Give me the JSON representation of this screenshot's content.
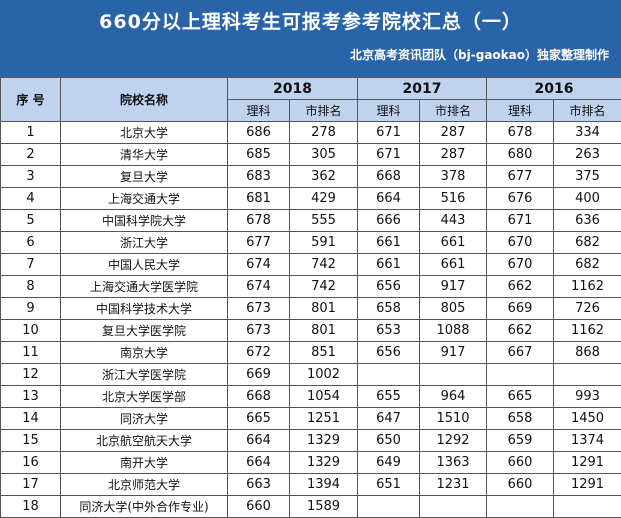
{
  "title": "660分以上理科考生可报考参考院校汇总（一）",
  "subtitle": "北京高考资讯团队（bj-gaokao）独家整理制作",
  "header": {
    "seq": "序 号",
    "school": "院校名称",
    "years": [
      "2018",
      "2017",
      "2016"
    ],
    "col_score": "理科",
    "col_rank": "市排名"
  },
  "rows": [
    {
      "seq": "1",
      "name": "北京大学",
      "s2018": "686",
      "r2018": "278",
      "s2017": "671",
      "r2017": "287",
      "s2016": "678",
      "r2016": "334"
    },
    {
      "seq": "2",
      "name": "清华大学",
      "s2018": "685",
      "r2018": "305",
      "s2017": "671",
      "r2017": "287",
      "s2016": "680",
      "r2016": "263"
    },
    {
      "seq": "3",
      "name": "复旦大学",
      "s2018": "683",
      "r2018": "362",
      "s2017": "668",
      "r2017": "378",
      "s2016": "677",
      "r2016": "375"
    },
    {
      "seq": "4",
      "name": "上海交通大学",
      "s2018": "681",
      "r2018": "429",
      "s2017": "664",
      "r2017": "516",
      "s2016": "676",
      "r2016": "400"
    },
    {
      "seq": "5",
      "name": "中国科学院大学",
      "s2018": "678",
      "r2018": "555",
      "s2017": "666",
      "r2017": "443",
      "s2016": "671",
      "r2016": "636"
    },
    {
      "seq": "6",
      "name": "浙江大学",
      "s2018": "677",
      "r2018": "591",
      "s2017": "661",
      "r2017": "661",
      "s2016": "670",
      "r2016": "682"
    },
    {
      "seq": "7",
      "name": "中国人民大学",
      "s2018": "674",
      "r2018": "742",
      "s2017": "661",
      "r2017": "661",
      "s2016": "670",
      "r2016": "682"
    },
    {
      "seq": "8",
      "name": "上海交通大学医学院",
      "s2018": "674",
      "r2018": "742",
      "s2017": "656",
      "r2017": "917",
      "s2016": "662",
      "r2016": "1162"
    },
    {
      "seq": "9",
      "name": "中国科学技术大学",
      "s2018": "673",
      "r2018": "801",
      "s2017": "658",
      "r2017": "805",
      "s2016": "669",
      "r2016": "726"
    },
    {
      "seq": "10",
      "name": "复旦大学医学院",
      "s2018": "673",
      "r2018": "801",
      "s2017": "653",
      "r2017": "1088",
      "s2016": "662",
      "r2016": "1162"
    },
    {
      "seq": "11",
      "name": "南京大学",
      "s2018": "672",
      "r2018": "851",
      "s2017": "656",
      "r2017": "917",
      "s2016": "667",
      "r2016": "868"
    },
    {
      "seq": "12",
      "name": "浙江大学医学院",
      "s2018": "669",
      "r2018": "1002",
      "s2017": "",
      "r2017": "",
      "s2016": "",
      "r2016": ""
    },
    {
      "seq": "13",
      "name": "北京大学医学部",
      "s2018": "668",
      "r2018": "1054",
      "s2017": "655",
      "r2017": "964",
      "s2016": "665",
      "r2016": "993"
    },
    {
      "seq": "14",
      "name": "同济大学",
      "s2018": "665",
      "r2018": "1251",
      "s2017": "647",
      "r2017": "1510",
      "s2016": "658",
      "r2016": "1450"
    },
    {
      "seq": "15",
      "name": "北京航空航天大学",
      "s2018": "664",
      "r2018": "1329",
      "s2017": "650",
      "r2017": "1292",
      "s2016": "659",
      "r2016": "1374"
    },
    {
      "seq": "16",
      "name": "南开大学",
      "s2018": "664",
      "r2018": "1329",
      "s2017": "649",
      "r2017": "1363",
      "s2016": "660",
      "r2016": "1291"
    },
    {
      "seq": "17",
      "name": "北京师范大学",
      "s2018": "663",
      "r2018": "1394",
      "s2017": "651",
      "r2017": "1231",
      "s2016": "660",
      "r2016": "1291"
    },
    {
      "seq": "18",
      "name": "同济大学(中外合作专业)",
      "s2018": "660",
      "r2018": "1589",
      "s2017": "",
      "r2017": "",
      "s2016": "",
      "r2016": ""
    }
  ]
}
